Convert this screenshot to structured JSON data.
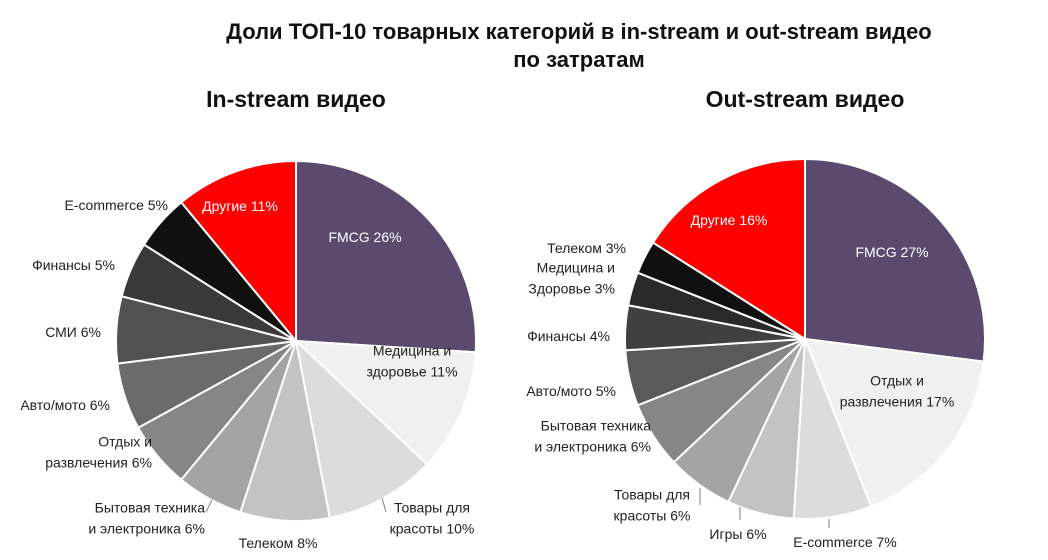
{
  "title_line1": "Доли ТОП-10 товарных категорий в in-stream и out-stream видео",
  "title_line2": "по затратам",
  "chart_data": [
    {
      "type": "pie",
      "title": "In-stream видео",
      "slices": [
        {
          "label": [
            "FMCG 26%"
          ],
          "value": 26,
          "color": "#5b4a6d",
          "text_color": "#ffffff"
        },
        {
          "label": [
            "Медицина и",
            "здоровье 11%"
          ],
          "value": 11,
          "color": "#f0f0f0",
          "text_color": "#222222"
        },
        {
          "label": [
            "Товары для",
            "красоты 10%"
          ],
          "value": 10,
          "color": "#dcdcdc",
          "text_color": "#222222"
        },
        {
          "label": [
            "Телеком 8%"
          ],
          "value": 8,
          "color": "#c3c3c3",
          "text_color": "#222222"
        },
        {
          "label": [
            "Бытовая техника",
            "и электроника 6%"
          ],
          "value": 6,
          "color": "#a4a4a4",
          "text_color": "#222222"
        },
        {
          "label": [
            "Отдых и",
            "развлечения 6%"
          ],
          "value": 6,
          "color": "#868686",
          "text_color": "#222222"
        },
        {
          "label": [
            "Авто/мото 6%"
          ],
          "value": 6,
          "color": "#6b6b6b",
          "text_color": "#222222"
        },
        {
          "label": [
            "СМИ 6%"
          ],
          "value": 6,
          "color": "#515151",
          "text_color": "#222222"
        },
        {
          "label": [
            "Финансы 5%"
          ],
          "value": 5,
          "color": "#3a3a3a",
          "text_color": "#222222"
        },
        {
          "label": [
            "E-commerce 5%"
          ],
          "value": 5,
          "color": "#101010",
          "text_color": "#222222"
        },
        {
          "label": [
            "Другие 11%"
          ],
          "value": 11,
          "color": "#fe0000",
          "text_color": "#ffffff"
        }
      ]
    },
    {
      "type": "pie",
      "title": "Out-stream видео",
      "slices": [
        {
          "label": [
            "FMCG 27%"
          ],
          "value": 27,
          "color": "#5b4a6d",
          "text_color": "#ffffff"
        },
        {
          "label": [
            "Отдых и",
            "развлечения 17%"
          ],
          "value": 17,
          "color": "#f0f0f0",
          "text_color": "#222222"
        },
        {
          "label": [
            "E-commerce 7%"
          ],
          "value": 7,
          "color": "#dcdcdc",
          "text_color": "#222222"
        },
        {
          "label": [
            "Игры 6%"
          ],
          "value": 6,
          "color": "#c3c3c3",
          "text_color": "#222222"
        },
        {
          "label": [
            "Товары для",
            "красоты 6%"
          ],
          "value": 6,
          "color": "#a4a4a4",
          "text_color": "#222222"
        },
        {
          "label": [
            "Бытовая техника",
            "и электроника 6%"
          ],
          "value": 6,
          "color": "#868686",
          "text_color": "#222222"
        },
        {
          "label": [
            "Авто/мото 5%"
          ],
          "value": 5,
          "color": "#5a5a5a",
          "text_color": "#222222"
        },
        {
          "label": [
            "Финансы 4%"
          ],
          "value": 4,
          "color": "#404040",
          "text_color": "#222222"
        },
        {
          "label": [
            "Медицина и",
            "Здоровье 3%"
          ],
          "value": 3,
          "color": "#2a2a2a",
          "text_color": "#222222"
        },
        {
          "label": [
            "Телеком 3%"
          ],
          "value": 3,
          "color": "#101010",
          "text_color": "#222222"
        },
        {
          "label": [
            "Другие 16%"
          ],
          "value": 16,
          "color": "#fe0000",
          "text_color": "#ffffff"
        }
      ]
    }
  ]
}
